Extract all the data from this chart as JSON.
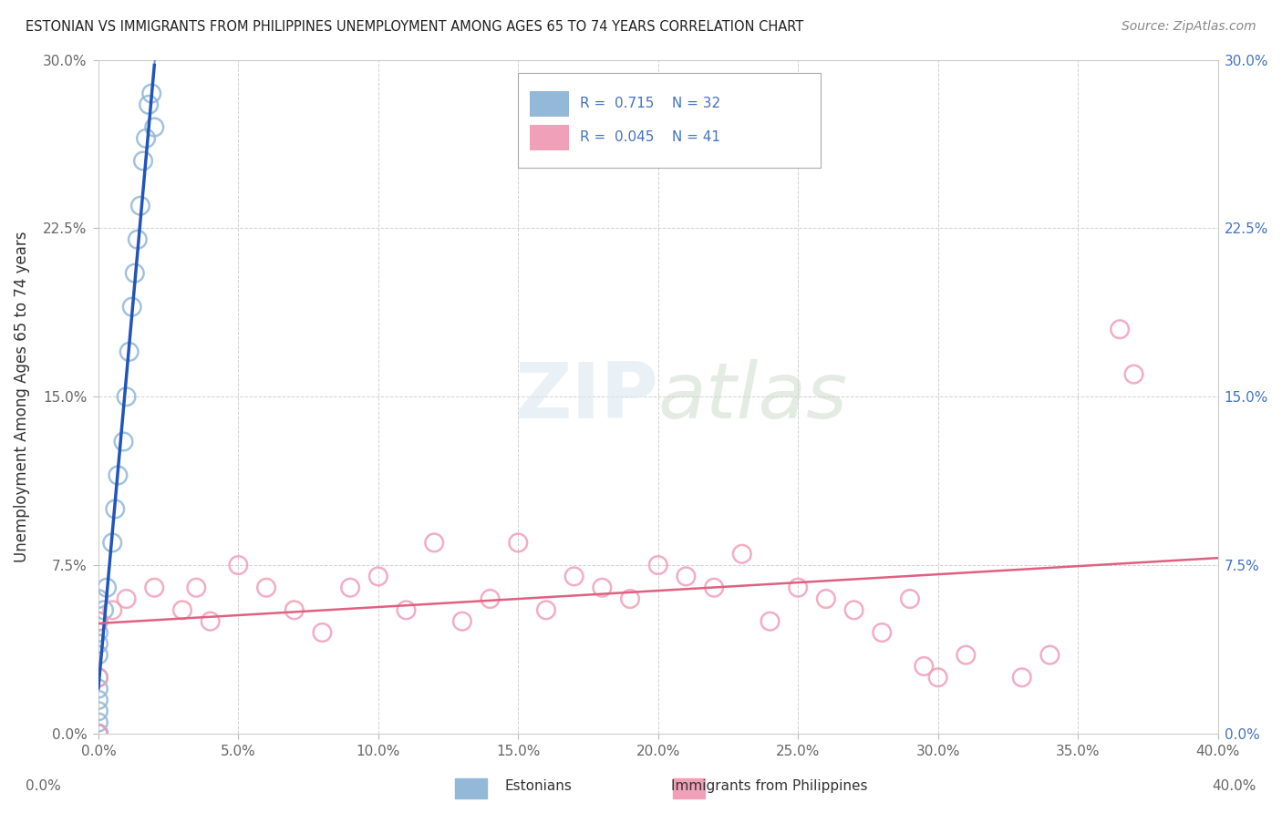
{
  "title": "ESTONIAN VS IMMIGRANTS FROM PHILIPPINES UNEMPLOYMENT AMONG AGES 65 TO 74 YEARS CORRELATION CHART",
  "source": "Source: ZipAtlas.com",
  "ylabel": "Unemployment Among Ages 65 to 74 years",
  "legend_estonians": "Estonians",
  "legend_philippines": "Immigrants from Philippines",
  "R_estonian": 0.715,
  "N_estonian": 32,
  "R_philippines": 0.045,
  "N_philippines": 41,
  "estonian_color": "#93b8d8",
  "philippines_color": "#f0a0b8",
  "trend_estonian_color": "#2255bb",
  "trend_philippines_color": "#e06080",
  "background_color": "#ffffff",
  "xlim": [
    0.0,
    40.0
  ],
  "ylim": [
    0.0,
    30.0
  ],
  "x_ticks": [
    0.0,
    5.0,
    10.0,
    15.0,
    20.0,
    25.0,
    30.0,
    35.0,
    40.0
  ],
  "y_ticks": [
    0.0,
    7.5,
    15.0,
    22.5,
    30.0
  ],
  "estonian_x": [
    0.0,
    0.0,
    0.0,
    0.0,
    0.0,
    0.0,
    0.0,
    0.0,
    0.0,
    0.0,
    0.0,
    0.0,
    0.0,
    0.0,
    0.0,
    0.2,
    0.3,
    0.5,
    0.6,
    0.7,
    0.9,
    1.0,
    1.1,
    1.2,
    1.3,
    1.4,
    1.5,
    1.6,
    1.7,
    1.8,
    1.9,
    2.0
  ],
  "estonian_y": [
    0.0,
    0.0,
    0.0,
    0.0,
    0.0,
    0.5,
    1.0,
    1.5,
    2.0,
    2.5,
    3.5,
    4.0,
    4.5,
    5.0,
    6.0,
    5.5,
    6.5,
    8.5,
    10.0,
    11.5,
    13.0,
    15.0,
    17.0,
    19.0,
    20.5,
    22.0,
    23.5,
    25.5,
    26.5,
    28.0,
    28.5,
    27.0
  ],
  "philippines_x": [
    0.0,
    0.0,
    0.0,
    0.5,
    1.0,
    2.0,
    3.0,
    3.5,
    4.0,
    5.0,
    6.0,
    7.0,
    8.0,
    9.0,
    10.0,
    11.0,
    12.0,
    13.0,
    14.0,
    15.0,
    16.0,
    17.0,
    18.0,
    19.0,
    20.0,
    21.0,
    22.0,
    23.0,
    24.0,
    25.0,
    26.0,
    27.0,
    28.0,
    29.0,
    29.5,
    30.0,
    31.0,
    33.0,
    34.0,
    36.5,
    37.0
  ],
  "philippines_y": [
    0.0,
    2.5,
    5.0,
    5.5,
    6.0,
    6.5,
    5.5,
    6.5,
    5.0,
    7.5,
    6.5,
    5.5,
    4.5,
    6.5,
    7.0,
    5.5,
    8.5,
    5.0,
    6.0,
    8.5,
    5.5,
    7.0,
    6.5,
    6.0,
    7.5,
    7.0,
    6.5,
    8.0,
    5.0,
    6.5,
    6.0,
    5.5,
    4.5,
    6.0,
    3.0,
    2.5,
    3.5,
    2.5,
    3.5,
    18.0,
    16.0
  ]
}
